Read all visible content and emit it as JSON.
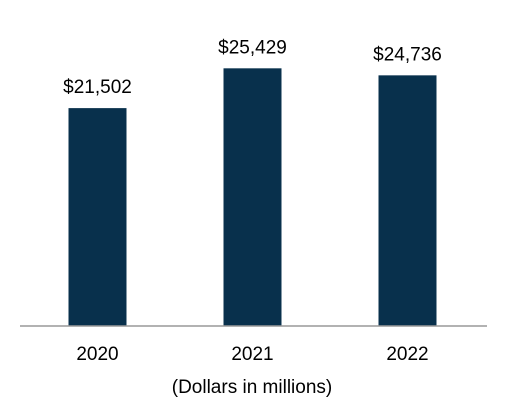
{
  "chart_data": {
    "type": "bar",
    "x_label": "(Dollars in millions)",
    "categories": [
      "2020",
      "2021",
      "2022"
    ],
    "values": [
      21502,
      25429,
      24736
    ],
    "value_labels": [
      "$21,502",
      "$25,429",
      "$24,736"
    ],
    "color": "#08304c",
    "ylim": [
      0,
      30000
    ]
  }
}
